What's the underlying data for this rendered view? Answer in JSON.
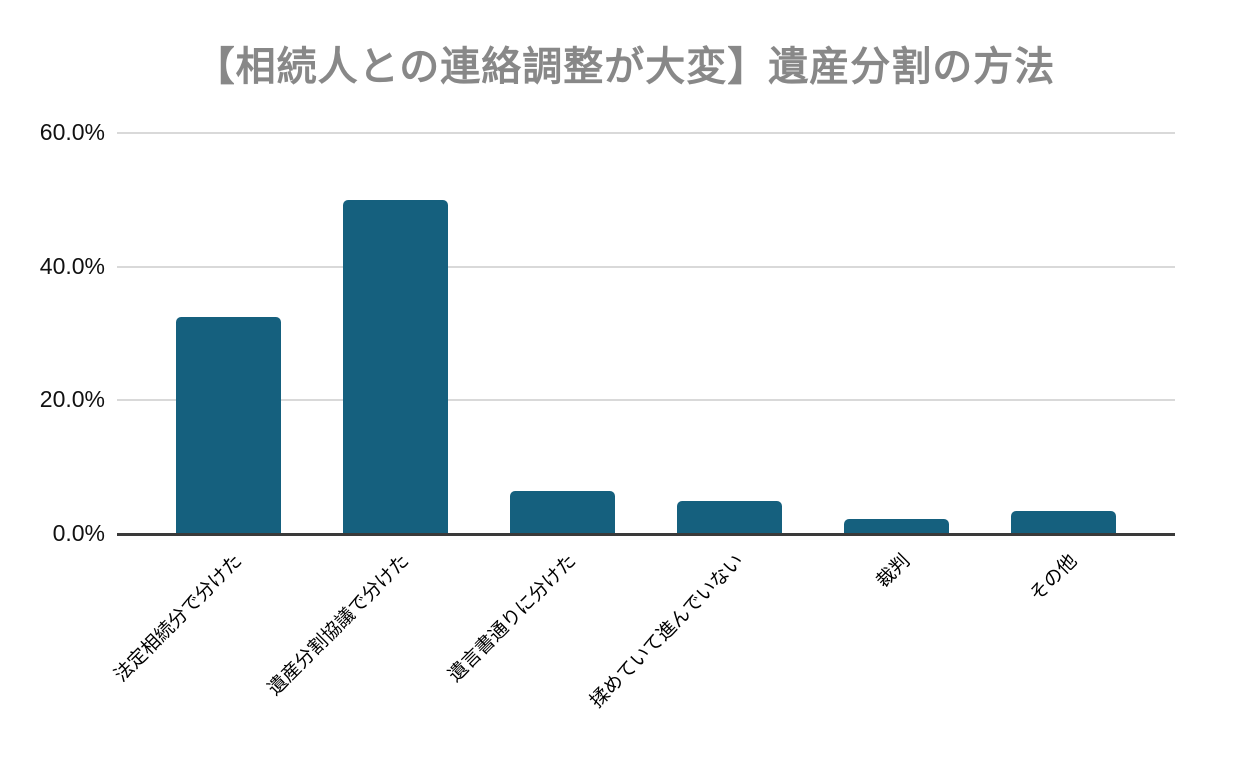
{
  "chart_data": {
    "type": "bar",
    "title": "【相続人との連絡調整が大変】遺産分割の方法",
    "categories": [
      "法定相続分で分けた",
      "遺産分割協議で分けた",
      "遺言書通りに分けた",
      "揉めていて進んでいない",
      "裁判",
      "その他"
    ],
    "values": [
      32.4,
      50.0,
      6.5,
      4.9,
      2.2,
      3.4
    ],
    "unit": "%",
    "ylim": [
      0,
      60
    ],
    "y_ticks": [
      {
        "label": "60.0%",
        "value": 60
      },
      {
        "label": "40.0%",
        "value": 40
      },
      {
        "label": "20.0%",
        "value": 20
      },
      {
        "label": "0.0%",
        "value": 0
      }
    ],
    "grid": true,
    "legend_position": "none",
    "x_label_rotation_deg": -45,
    "colors": {
      "bar": "#15607e",
      "title": "#888888",
      "gridline": "#d9d9d9",
      "axis_line": "#3a3a3a",
      "tick_text": "#111111",
      "category_text": "#000000",
      "background": "#ffffff"
    }
  }
}
